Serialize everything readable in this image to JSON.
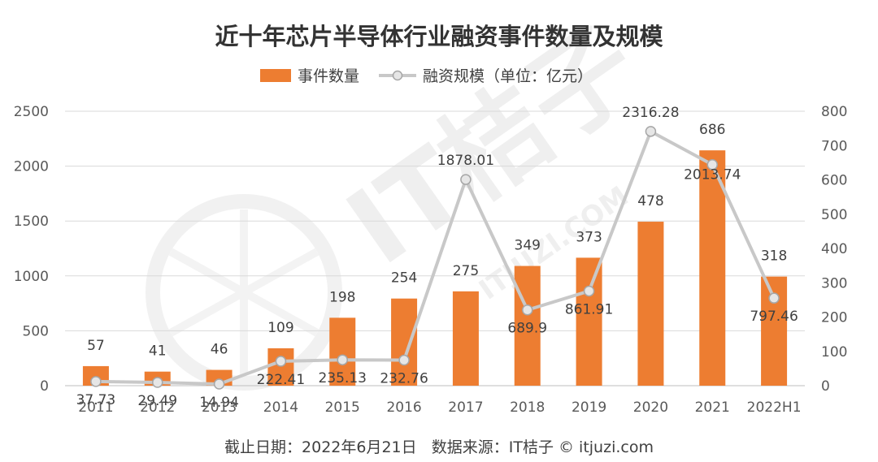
{
  "chart_data": {
    "type": "bar",
    "title": "近十年芯片半导体行业融资事件数量及规模",
    "categories": [
      "2011",
      "2012",
      "2013",
      "2014",
      "2015",
      "2016",
      "2017",
      "2018",
      "2019",
      "2020",
      "2021",
      "2022H1"
    ],
    "series": [
      {
        "name": "事件数量",
        "type": "bar",
        "axis": "right",
        "color": "#ed7d31",
        "values": [
          57,
          41,
          46,
          109,
          198,
          254,
          275,
          349,
          373,
          478,
          686,
          318
        ]
      },
      {
        "name": "融资规模（单位：亿元）",
        "type": "line",
        "axis": "left",
        "color": "#c8c8c8",
        "values": [
          37.73,
          29.49,
          14.94,
          222.41,
          235.13,
          232.76,
          1878.01,
          689.9,
          861.91,
          2316.28,
          2013.74,
          797.46
        ]
      }
    ],
    "y_left": {
      "ylim": [
        0,
        2500
      ],
      "ticks": [
        0,
        500,
        1000,
        1500,
        2000,
        2500
      ]
    },
    "y_right": {
      "ylim": [
        0,
        800
      ],
      "ticks": [
        0,
        100,
        200,
        300,
        400,
        500,
        600,
        700,
        800
      ]
    },
    "grid": true,
    "legend": "top-center"
  },
  "footer": "截止日期：2022年6月21日   数据来源：IT桔子 © itjuzi.com",
  "watermark": {
    "brand": "IT桔子",
    "url": "ITJUZI.COM"
  }
}
